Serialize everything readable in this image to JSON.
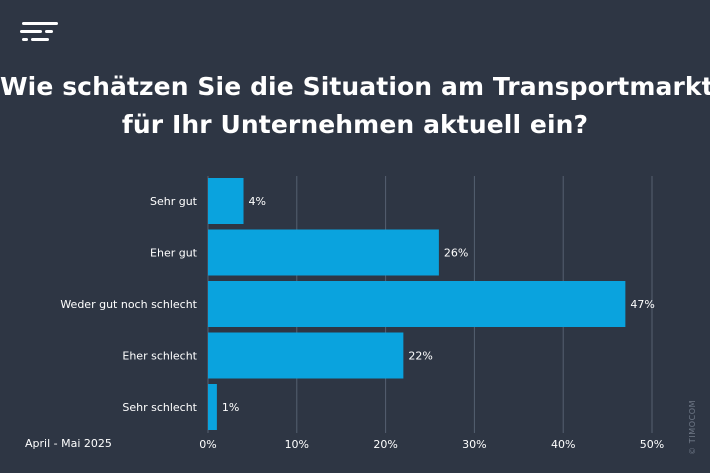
{
  "header": {
    "title_line1": "Wie schätzen Sie die Situation am Transportmarkt",
    "title_line2": "für Ihr Unternehmen aktuell ein?",
    "logo_icon": "timocom-logo-icon"
  },
  "footer": {
    "period": "April - Mai 2025",
    "watermark": "© TIMOCOM"
  },
  "colors": {
    "background": "#2e3644",
    "bar": "#0aa3de",
    "grid": "#556071",
    "text": "#ffffff"
  },
  "chart_data": {
    "type": "bar",
    "orientation": "horizontal",
    "categories": [
      "Sehr gut",
      "Eher gut",
      "Weder gut noch schlecht",
      "Eher schlecht",
      "Sehr schlecht"
    ],
    "values": [
      4,
      26,
      47,
      22,
      1
    ],
    "value_labels": [
      "4%",
      "26%",
      "47%",
      "22%",
      "1%"
    ],
    "xlim": [
      0,
      50
    ],
    "xticks": [
      0,
      10,
      20,
      30,
      40,
      50
    ],
    "xtick_labels": [
      "0%",
      "10%",
      "20%",
      "30%",
      "40%",
      "50%"
    ],
    "grid": true,
    "legend": "none"
  }
}
